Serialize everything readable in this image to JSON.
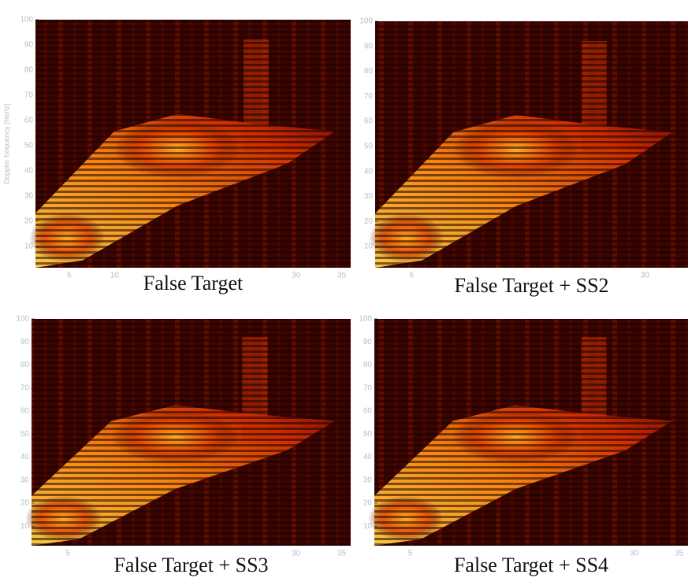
{
  "chart_data": [
    {
      "type": "spectrogram",
      "title": "False Target",
      "y_label": "Doppler frequency [Hertz]",
      "xlim": [
        1.3,
        36
      ],
      "xticks": [
        5,
        10,
        30,
        35
      ],
      "ylim": [
        1.5,
        100
      ],
      "yticks": [
        10,
        20,
        30,
        40,
        50,
        60,
        70,
        80,
        90,
        100
      ]
    },
    {
      "type": "spectrogram",
      "title": "False Target + SS2",
      "xlim": [
        1.1,
        34.6
      ],
      "xticks": [
        5,
        30
      ],
      "ylim": [
        1.5,
        100
      ],
      "yticks": [
        10,
        20,
        30,
        40,
        50,
        60,
        70,
        80,
        90,
        100
      ]
    },
    {
      "type": "spectrogram",
      "title": "False Target + SS3",
      "xlim": [
        1,
        36
      ],
      "xticks": [
        5,
        30,
        35
      ],
      "ylim": [
        1.5,
        100
      ],
      "yticks": [
        10,
        20,
        30,
        40,
        50,
        60,
        70,
        80,
        90,
        100
      ]
    },
    {
      "type": "spectrogram",
      "title": "False Target + SS4",
      "xlim": [
        1,
        36
      ],
      "xticks": [
        5,
        30,
        35
      ],
      "ylim": [
        1.5,
        100
      ],
      "yticks": [
        10,
        20,
        30,
        40,
        50,
        60,
        70,
        80,
        90,
        100
      ]
    }
  ]
}
